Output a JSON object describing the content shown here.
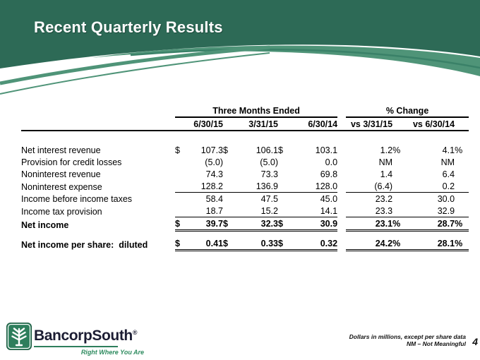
{
  "slide": {
    "title": "Recent Quarterly Results",
    "page_number": "4"
  },
  "table": {
    "group_headers": {
      "three_months": "Three Months Ended",
      "pct_change": "% Change"
    },
    "column_headers": [
      "6/30/15",
      "3/31/15",
      "6/30/14",
      "vs 3/31/15",
      "vs 6/30/14"
    ],
    "dollar_symbol": "$",
    "percent_symbol": "%",
    "rows": [
      {
        "label": "Net interest revenue",
        "indent": false,
        "bold": false,
        "dollar": true,
        "pct": true,
        "values": [
          "107.3",
          "106.1",
          "103.1"
        ],
        "changes": [
          "1.2",
          "4.1"
        ],
        "rule": "none"
      },
      {
        "label": "Provision for credit losses",
        "indent": false,
        "bold": false,
        "dollar": false,
        "pct": false,
        "values": [
          "(5.0)",
          "(5.0)",
          "0.0"
        ],
        "changes": [
          "NM",
          "NM"
        ],
        "rule": "none"
      },
      {
        "label": "Noninterest revenue",
        "indent": true,
        "bold": false,
        "dollar": false,
        "pct": false,
        "values": [
          "74.3",
          "73.3",
          "69.8"
        ],
        "changes": [
          "1.4",
          "6.4"
        ],
        "rule": "none"
      },
      {
        "label": "Noninterest expense",
        "indent": true,
        "bold": false,
        "dollar": false,
        "pct": false,
        "values": [
          "128.2",
          "136.9",
          "128.0"
        ],
        "changes": [
          "(6.4)",
          "0.2"
        ],
        "rule": "single"
      },
      {
        "label": "Income before income taxes",
        "indent": false,
        "bold": false,
        "dollar": false,
        "pct": false,
        "values": [
          "58.4",
          "47.5",
          "45.0"
        ],
        "changes": [
          "23.2",
          "30.0"
        ],
        "rule": "none"
      },
      {
        "label": "Income tax provision",
        "indent": true,
        "bold": false,
        "dollar": false,
        "pct": false,
        "values": [
          "18.7",
          "15.2",
          "14.1"
        ],
        "changes": [
          "23.3",
          "32.9"
        ],
        "rule": "single"
      },
      {
        "label": "Net income",
        "indent": false,
        "bold": true,
        "dollar": true,
        "pct": true,
        "values": [
          "39.7",
          "32.3",
          "30.9"
        ],
        "changes": [
          "23.1",
          "28.7"
        ],
        "rule": "double"
      },
      {
        "label": "Net income per share:  diluted",
        "indent": false,
        "bold": true,
        "dollar": true,
        "pct": true,
        "values": [
          "0.41",
          "0.33",
          "0.32"
        ],
        "changes": [
          "24.2",
          "28.1"
        ],
        "rule": "double"
      }
    ]
  },
  "footer": {
    "logo_text": "BancorpSouth",
    "logo_mark": "®",
    "tagline": "Right Where You Are",
    "note_line1": "Dollars in millions, except per share data",
    "note_line2": "NM – Not Meaningful"
  },
  "colors": {
    "header_green": "#2D6A56",
    "ribbon_green": "#4F9478",
    "ribbon_line_green": "#3A8168",
    "logo_green": "#2E7E5C",
    "tagline_green": "#2E8B5F",
    "text_black": "#000000",
    "wordmark_navy": "#1C1D33"
  }
}
